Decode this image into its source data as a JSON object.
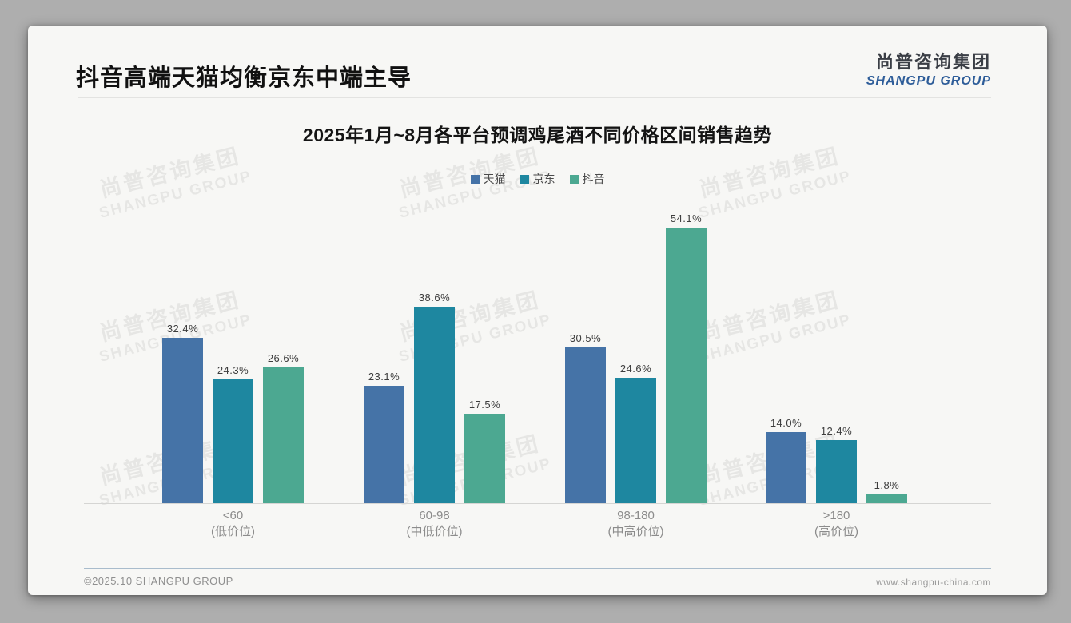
{
  "page": {
    "title": "抖音高端天猫均衡京东中端主导",
    "logo": {
      "cn": "尚普咨询集团",
      "en": "SHANGPU GROUP"
    },
    "watermark": {
      "cn": "尚普咨询集团",
      "en": "SHANGPU GROUP"
    },
    "footer": {
      "left": "©2025.10 SHANGPU GROUP",
      "right": "www.shangpu-china.com"
    }
  },
  "chart_data": {
    "type": "bar",
    "title": "2025年1月~8月各平台预调鸡尾酒不同价格区间销售趋势",
    "categories": [
      "<60",
      "60-98",
      "98-180",
      ">180"
    ],
    "category_sublabels": [
      "(低价位)",
      "(中低价位)",
      "(中高价位)",
      "(高价位)"
    ],
    "series": [
      {
        "name": "天猫",
        "color": "#4573a7",
        "values": [
          32.4,
          23.1,
          30.5,
          14.0
        ]
      },
      {
        "name": "京东",
        "color": "#1e87a0",
        "values": [
          24.3,
          38.6,
          24.6,
          12.4
        ]
      },
      {
        "name": "抖音",
        "color": "#4ca891",
        "values": [
          26.6,
          17.5,
          54.1,
          1.8
        ]
      }
    ],
    "value_suffix": "%",
    "value_decimals": 1,
    "ylim": [
      0,
      60
    ],
    "grid": false,
    "legend_position": "top",
    "xlabel": "",
    "ylabel": ""
  }
}
